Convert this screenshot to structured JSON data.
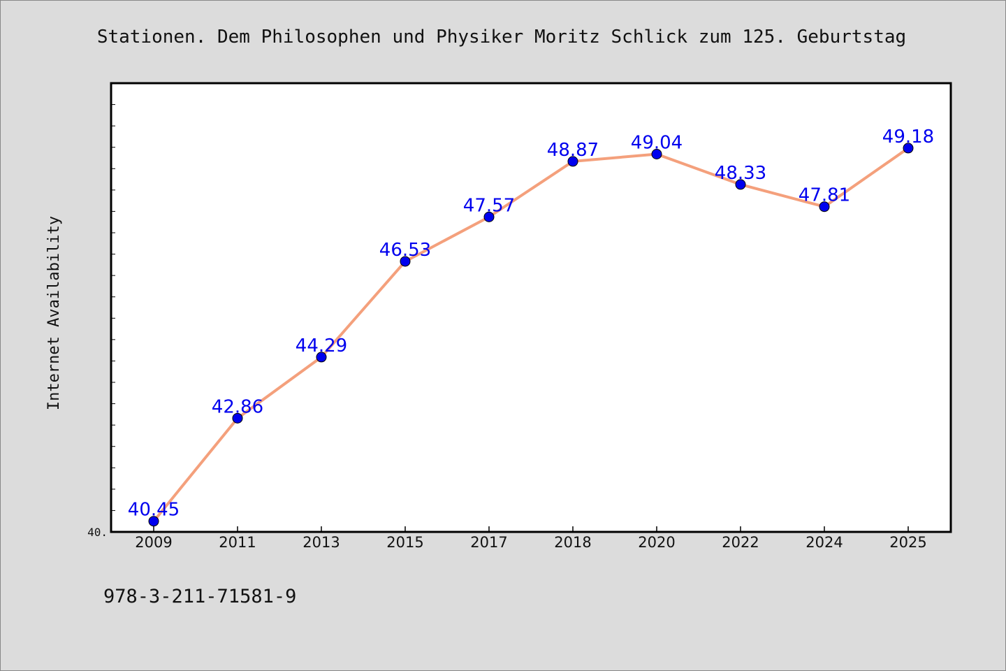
{
  "chart_data": {
    "type": "line",
    "title": "Stationen. Dem Philosophen und Physiker Moritz Schlick zum 125. Geburtstag",
    "ylabel": "Internet Availability",
    "xlabel": "",
    "categories": [
      "2009",
      "2011",
      "2013",
      "2015",
      "2017",
      "2018",
      "2020",
      "2022",
      "2024",
      "2025"
    ],
    "series": [
      {
        "values": [
          40.45,
          42.86,
          44.29,
          46.53,
          47.57,
          48.87,
          49.04,
          48.33,
          47.81,
          49.18
        ]
      }
    ],
    "data_labels": [
      "40.45",
      "42.86",
      "44.29",
      "46.53",
      "47.57",
      "48.87",
      "49.04",
      "48.33",
      "47.81",
      "49.18"
    ],
    "ytick_label": "40.",
    "ylim": [
      40.2,
      50.7
    ],
    "grid": false,
    "legend": "none",
    "colors": {
      "line": "#f4a07c",
      "marker": "#0000ee",
      "label": "#0000ee",
      "frame": "#000000",
      "background": "#dcdcdc",
      "plot_bg": "#ffffff"
    }
  },
  "footer": {
    "isbn": "978-3-211-71581-9"
  }
}
